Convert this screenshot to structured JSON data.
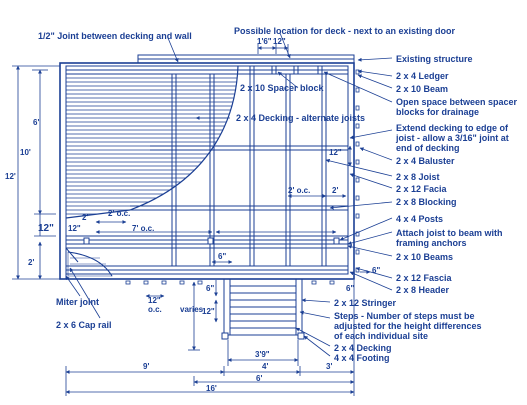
{
  "colors": {
    "ink": "#1b3f94",
    "background": "#ffffff"
  },
  "callouts": {
    "joint_decking_wall": "1/2\" Joint between decking and wall",
    "possible_location": "Possible location for deck - next to an existing door",
    "existing_structure": "Existing structure",
    "ledger": "2 x 4 Ledger",
    "beam": "2 x 10 Beam",
    "spacer_block": "2 x 10 Spacer block",
    "open_space_line1": "Open space between spacer",
    "open_space_line2": "blocks for drainage",
    "decking_alternate": "2 x 4 Decking - alternate joists",
    "extend_decking_line1": "Extend decking to edge of",
    "extend_decking_line2": "joist - allow a 3/16\" joint at",
    "extend_decking_line3": "end of decking",
    "baluster": "2 x 4 Baluster",
    "joist": "2 x 8 Joist",
    "facia": "2 x 12 Facia",
    "blocking": "2 x 8 Blocking",
    "posts": "4 x 4 Posts",
    "attach_joist_line1": "Attach joist to beam with",
    "attach_joist_line2": "framing anchors",
    "beams": "2 x 10 Beams",
    "fascia": "2 x 12 Fascia",
    "header": "2 x 8 Header",
    "miter_joint": "Miter joint",
    "cap_rail": "2 x 6 Cap rail",
    "stringer": "2 x 12 Stringer",
    "steps_line1": "Steps - Number of steps must be",
    "steps_line2": "adjusted for the height differences",
    "steps_line3": "of each individual site",
    "decking": "2 x 4 Decking",
    "footing": "4 x 4 Footing"
  },
  "dimensions": {
    "d_1_6": "1'6\"",
    "d_12_top": "12\"",
    "d_6ft": "6'",
    "d_10ft": "10'",
    "d_12ft": "12'",
    "d_12_left": "12\"",
    "d_2ft_side": "2'",
    "d_2ft": "2'",
    "d_2oc_left": "2' o.c.",
    "d_12_mid": "12\"",
    "d_7oc": "7' o.c.",
    "d_2oc_right": "2' o.c.",
    "d_2ft_right": "2'",
    "d_12_right": "12\"",
    "d_6in": "6\"",
    "d_6in_right": "6\"",
    "d_6in_corner": "6\"",
    "d_12oc": "12\"",
    "d_oc": "o.c.",
    "d_varies": "varies",
    "d_6in_stair": "6\"",
    "d_12_stair": "12\"",
    "d_3_9": "3'9\"",
    "d_4ft": "4'",
    "d_9ft": "9'",
    "d_6ft_bottom": "6'",
    "d_3ft": "3'",
    "d_16ft": "16'"
  }
}
